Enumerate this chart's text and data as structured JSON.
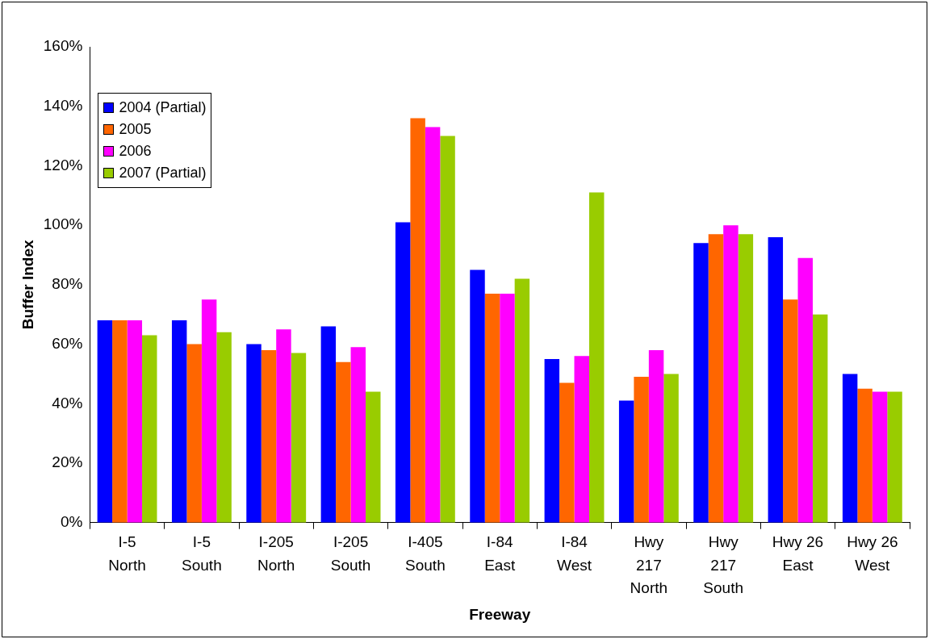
{
  "chart_data": {
    "type": "bar",
    "xlabel": "Freeway",
    "ylabel": "Buffer Index",
    "categories": [
      "I-5 North",
      "I-5 South",
      "I-205 North",
      "I-205 South",
      "I-405 South",
      "I-84 East",
      "I-84 West",
      "Hwy 217 North",
      "Hwy 217 South",
      "Hwy 26 East",
      "Hwy 26 West"
    ],
    "series": [
      {
        "name": "2004 (Partial)",
        "color": "#0000ff",
        "values": [
          68,
          68,
          60,
          66,
          101,
          85,
          55,
          41,
          94,
          96,
          50
        ]
      },
      {
        "name": "2005",
        "color": "#ff6600",
        "values": [
          68,
          60,
          58,
          54,
          136,
          77,
          47,
          49,
          97,
          75,
          45
        ]
      },
      {
        "name": "2006",
        "color": "#ff00ff",
        "values": [
          68,
          75,
          65,
          59,
          133,
          77,
          56,
          58,
          100,
          89,
          44
        ]
      },
      {
        "name": "2007 (Partial)",
        "color": "#99cc00",
        "values": [
          63,
          64,
          57,
          44,
          130,
          82,
          111,
          50,
          97,
          70,
          44
        ]
      }
    ],
    "ylim": [
      0,
      160
    ],
    "yticks": [
      {
        "value": 0,
        "label": "0%"
      },
      {
        "value": 20,
        "label": "20%"
      },
      {
        "value": 40,
        "label": "40%"
      },
      {
        "value": 60,
        "label": "60%"
      },
      {
        "value": 80,
        "label": "80%"
      },
      {
        "value": 100,
        "label": "100%"
      },
      {
        "value": 120,
        "label": "120%"
      },
      {
        "value": 140,
        "label": "140%"
      },
      {
        "value": 160,
        "label": "160%"
      }
    ],
    "grid": false,
    "legend": "top left"
  }
}
